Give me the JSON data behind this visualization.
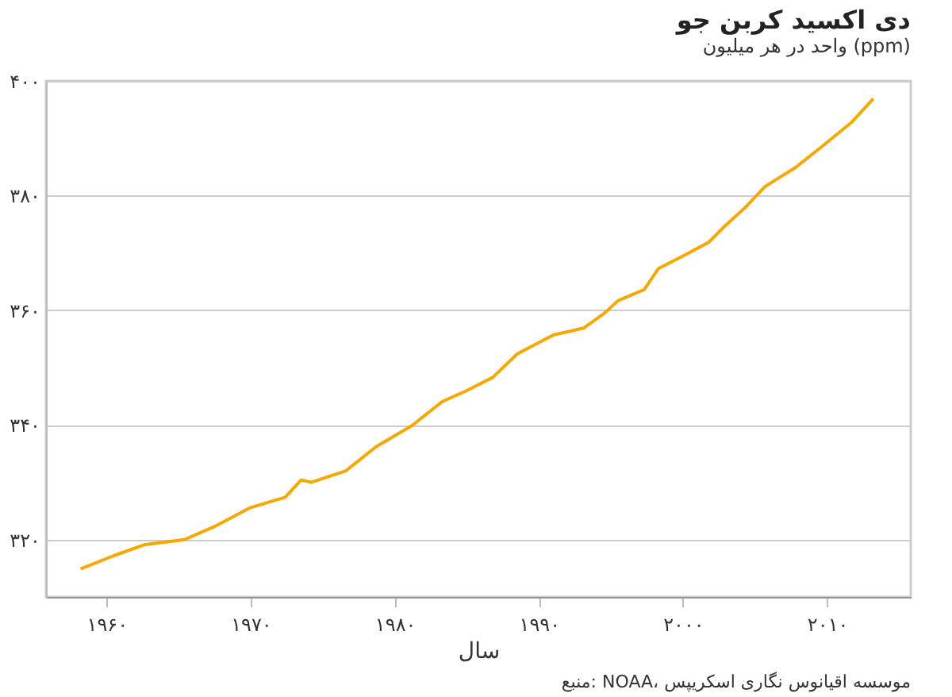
{
  "chart_data": {
    "type": "line",
    "title": "دی اکسید کربن جو",
    "subtitle": "واحد در هر میلیون (ppm)",
    "xlabel": "سال",
    "annotations": [
      "منبع: NOAA، موسسه اقیانوس نگاری اسکریپس"
    ],
    "x": [
      1958.2,
      1960.5,
      1962.6,
      1965.4,
      1967.5,
      1970.0,
      1972.4,
      1973.5,
      1974.2,
      1976.6,
      1978.7,
      1981.2,
      1983.3,
      1985.0,
      1986.8,
      1988.5,
      1991.0,
      1993.1,
      1994.5,
      1995.5,
      1997.3,
      1998.3,
      2000.1,
      2001.8,
      2002.9,
      2004.3,
      2005.7,
      2007.8,
      2009.9,
      2011.7,
      2013.2
    ],
    "series": [
      {
        "color": "#f5a800",
        "values": [
          314.9,
          317.2,
          319.1,
          320.0,
          322.3,
          325.6,
          327.4,
          330.4,
          330.0,
          332.0,
          336.2,
          339.9,
          344.1,
          346.0,
          348.3,
          352.4,
          355.7,
          356.9,
          359.4,
          361.7,
          363.6,
          367.3,
          369.6,
          371.9,
          374.7,
          377.9,
          381.6,
          384.9,
          389.1,
          392.8,
          396.9
        ]
      }
    ],
    "xlim": [
      1955.8,
      2015.8
    ],
    "ylim": [
      310,
      400
    ],
    "xticks": [
      {
        "value": 1960,
        "label": "۱۹۶۰"
      },
      {
        "value": 1970,
        "label": "۱۹۷۰"
      },
      {
        "value": 1980,
        "label": "۱۹۸۰"
      },
      {
        "value": 1990,
        "label": "۱۹۹۰"
      },
      {
        "value": 2000,
        "label": "۲۰۰۰"
      },
      {
        "value": 2010,
        "label": "۲۰۱۰"
      }
    ],
    "yticks": [
      {
        "value": 320,
        "label": "۳۲۰"
      },
      {
        "value": 340,
        "label": "۳۴۰"
      },
      {
        "value": 360,
        "label": "۳۶۰"
      },
      {
        "value": 380,
        "label": "۳۸۰"
      },
      {
        "value": 400,
        "label": "۴۰۰"
      }
    ],
    "grid": "y",
    "marker": "none",
    "line_style": "solid"
  }
}
